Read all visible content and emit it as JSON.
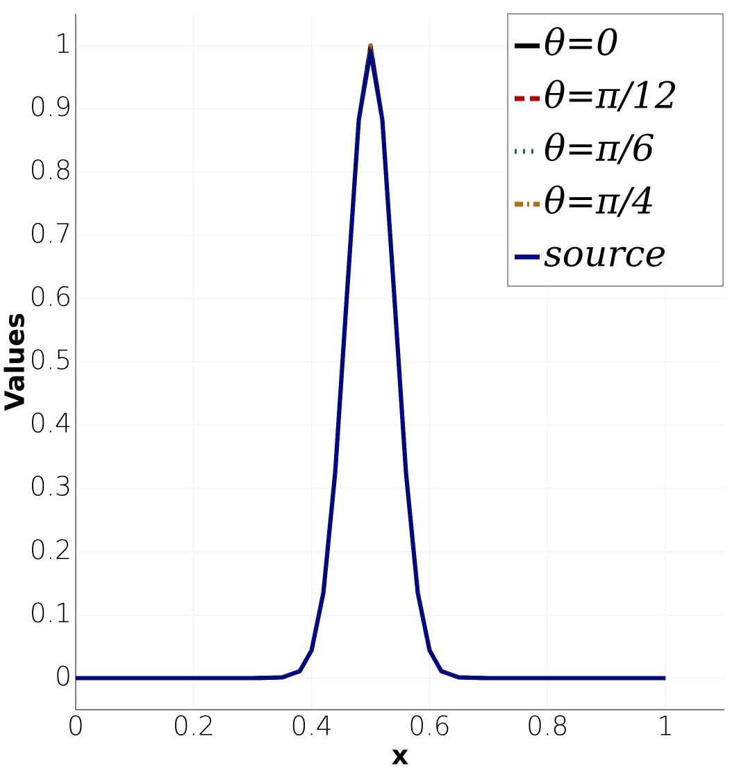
{
  "chart_data": {
    "type": "line",
    "xlabel": "x",
    "ylabel": "Values",
    "x": [
      0,
      0.1,
      0.2,
      0.3,
      0.35,
      0.38,
      0.4,
      0.42,
      0.44,
      0.46,
      0.48,
      0.5,
      0.52,
      0.54,
      0.56,
      0.58,
      0.6,
      0.62,
      0.65,
      0.7,
      0.8,
      0.9,
      1
    ],
    "series": [
      {
        "name": "θ=0",
        "color": "#000000",
        "style": "solid",
        "values": [
          0,
          0,
          0,
          0,
          0.001,
          0.011,
          0.044,
          0.135,
          0.325,
          0.607,
          0.882,
          1.0,
          0.882,
          0.607,
          0.325,
          0.135,
          0.044,
          0.011,
          0.001,
          0,
          0,
          0,
          0
        ]
      },
      {
        "name": "θ=π/12",
        "color": "#b00000",
        "style": "dashed",
        "values": [
          0,
          0,
          0,
          0,
          0.001,
          0.011,
          0.044,
          0.135,
          0.325,
          0.607,
          0.882,
          1.0,
          0.882,
          0.607,
          0.325,
          0.135,
          0.044,
          0.011,
          0.001,
          0,
          0,
          0,
          0
        ]
      },
      {
        "name": "θ=π/6",
        "color": "#207020",
        "style": "dotted",
        "values": [
          0,
          0,
          0,
          0,
          0.001,
          0.011,
          0.044,
          0.135,
          0.325,
          0.607,
          0.882,
          1.0,
          0.882,
          0.607,
          0.325,
          0.135,
          0.044,
          0.011,
          0.001,
          0,
          0,
          0,
          0
        ]
      },
      {
        "name": "θ=π/4",
        "color": "#b86a10",
        "style": "dashdot",
        "values": [
          0,
          0,
          0,
          0,
          0.001,
          0.011,
          0.044,
          0.135,
          0.325,
          0.607,
          0.882,
          1.0,
          0.882,
          0.607,
          0.325,
          0.135,
          0.044,
          0.011,
          0.001,
          0,
          0,
          0,
          0
        ]
      },
      {
        "name": "source",
        "color": "#000a80",
        "style": "solid",
        "values": [
          0,
          0,
          0,
          0,
          0.001,
          0.011,
          0.044,
          0.135,
          0.325,
          0.607,
          0.882,
          0.99,
          0.882,
          0.607,
          0.325,
          0.135,
          0.044,
          0.011,
          0.001,
          0,
          0,
          0,
          0
        ]
      }
    ],
    "xlim": [
      0,
      1.1
    ],
    "xticks": [
      0,
      0.2,
      0.4,
      0.6,
      0.8,
      1
    ],
    "ylim": [
      -0.05,
      1.05
    ],
    "yticks": [
      0,
      0.1,
      0.2,
      0.3,
      0.4,
      0.5,
      0.6,
      0.7,
      0.8,
      0.9,
      1
    ],
    "grid": true,
    "legend": "upper right"
  }
}
